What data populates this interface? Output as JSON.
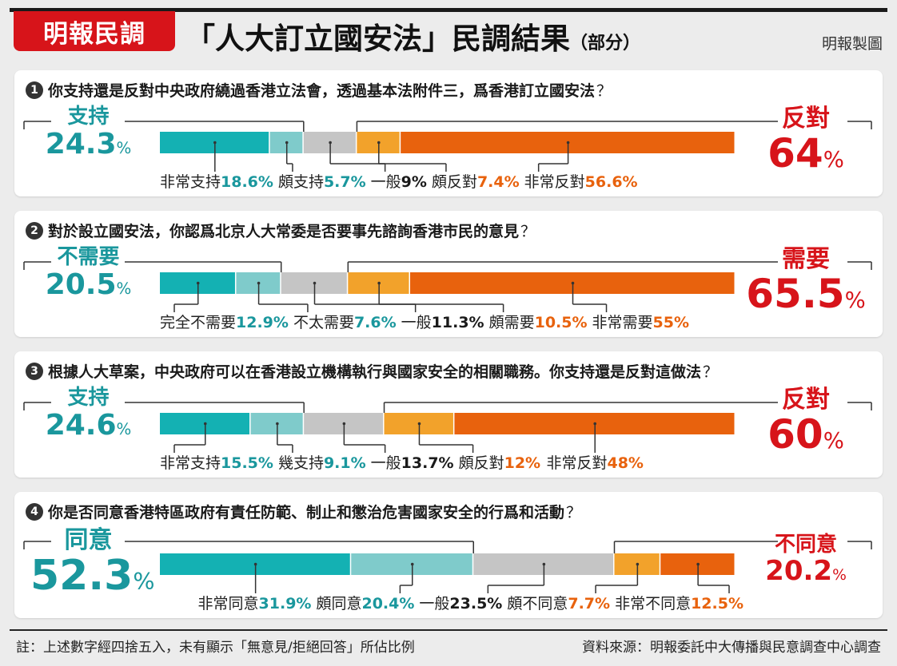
{
  "header": {
    "brand": "明報民調",
    "title": "「人大訂立國安法」民調結果",
    "title_sub": "（部分）",
    "maker": "明報製圖"
  },
  "footer": {
    "note": "註：上述數字經四捨五入，未有顯示「無意見/拒絕回答」所佔比例",
    "source": "資料來源：明報委託中大傳播與民意調查中心調查"
  },
  "colors": {
    "strong_positive": "#14b1b3",
    "positive": "#7fcbcb",
    "neutral": "#c5c5c5",
    "negative": "#f2a22b",
    "strong_negative": "#e8620d",
    "teal_text": "#1a979d",
    "red_text": "#d7141a",
    "orange_text": "#e8620d"
  },
  "chart_data": [
    {
      "type": "bar",
      "number": "1",
      "question": "你支持還是反對中央政府繞過香港立法會，透過基本法附件三，爲香港訂立國安法",
      "question_mark": "？",
      "left_summary": {
        "label": "支持",
        "value": "24.3",
        "unit": "%"
      },
      "right_summary": {
        "label": "反對",
        "value": "64",
        "unit": "%"
      },
      "categories": [
        "非常支持",
        "頗支持",
        "一般",
        "頗反對",
        "非常反對"
      ],
      "values": [
        18.6,
        5.7,
        9,
        7.4,
        56.6
      ],
      "value_labels": [
        "18.6%",
        "5.7%",
        "9%",
        "7.4%",
        "56.6%"
      ]
    },
    {
      "type": "bar",
      "number": "2",
      "question": "對於設立國安法，你認爲北京人大常委是否要事先諮詢香港市民的意見",
      "question_mark": "？",
      "left_summary": {
        "label": "不需要",
        "value": "20.5",
        "unit": "%"
      },
      "right_summary": {
        "label": "需要",
        "value": "65.5",
        "unit": "%"
      },
      "categories": [
        "完全不需要",
        "不太需要",
        "一般",
        "頗需要",
        "非常需要"
      ],
      "values": [
        12.9,
        7.6,
        11.3,
        10.5,
        55
      ],
      "value_labels": [
        "12.9%",
        "7.6%",
        "11.3%",
        "10.5%",
        "55%"
      ]
    },
    {
      "type": "bar",
      "number": "3",
      "question": "根據人大草案，中央政府可以在香港設立機構執行與國家安全的相關職務。你支持還是反對這做法",
      "question_mark": "？",
      "left_summary": {
        "label": "支持",
        "value": "24.6",
        "unit": "%"
      },
      "right_summary": {
        "label": "反對",
        "value": "60",
        "unit": "%"
      },
      "categories": [
        "非常支持",
        "幾支持",
        "一般",
        "頗反對",
        "非常反對"
      ],
      "values": [
        15.5,
        9.1,
        13.7,
        12,
        48
      ],
      "value_labels": [
        "15.5%",
        "9.1%",
        "13.7%",
        "12%",
        "48%"
      ]
    },
    {
      "type": "bar",
      "number": "4",
      "question": "你是否同意香港特區政府有責任防範、制止和懲治危害國家安全的行爲和活動",
      "question_mark": "？",
      "left_summary": {
        "label": "同意",
        "value": "52.3",
        "unit": "%"
      },
      "right_summary": {
        "label": "不同意",
        "value": "20.2",
        "unit": "%"
      },
      "categories": [
        "非常同意",
        "頗同意",
        "一般",
        "頗不同意",
        "非常不同意"
      ],
      "values": [
        31.9,
        20.4,
        23.5,
        7.7,
        12.5
      ],
      "value_labels": [
        "31.9%",
        "20.4%",
        "23.5%",
        "7.7%",
        "12.5%"
      ]
    }
  ]
}
